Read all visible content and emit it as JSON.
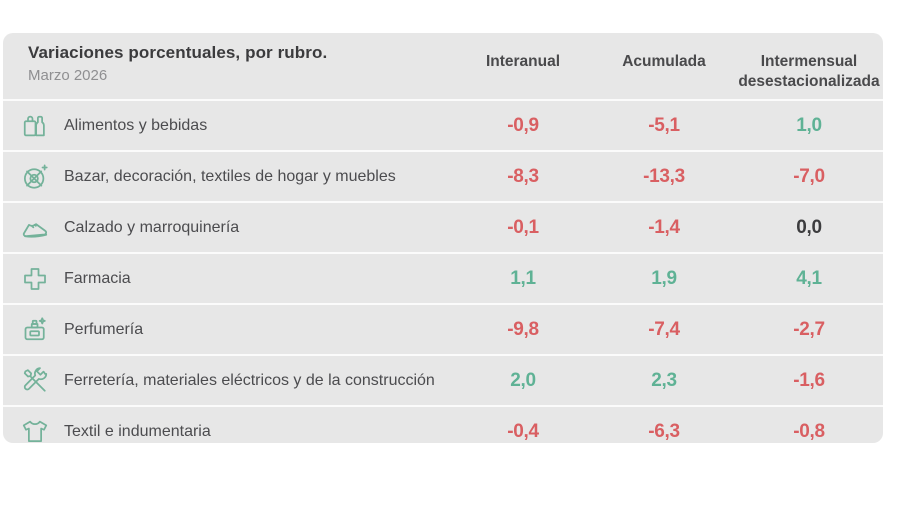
{
  "table": {
    "title": "Variaciones porcentuales, por rubro.",
    "subtitle": "Marzo 2026",
    "columns": [
      {
        "label": "Interanual",
        "sublabel": ""
      },
      {
        "label": "Acumulada",
        "sublabel": ""
      },
      {
        "label": "Intermensual",
        "sublabel": "desestacionalizada"
      }
    ],
    "rows": [
      {
        "icon": "groceries-icon",
        "label": "Alimentos y bebidas",
        "values": [
          {
            "text": "-0,9",
            "state": "negative"
          },
          {
            "text": "-5,1",
            "state": "negative"
          },
          {
            "text": "1,0",
            "state": "positive"
          }
        ]
      },
      {
        "icon": "tableware-icon",
        "label": "Bazar, decoración, textiles de hogar y muebles",
        "values": [
          {
            "text": "-8,3",
            "state": "negative"
          },
          {
            "text": "-13,3",
            "state": "negative"
          },
          {
            "text": "-7,0",
            "state": "negative"
          }
        ]
      },
      {
        "icon": "shoe-icon",
        "label": "Calzado y marroquinería",
        "values": [
          {
            "text": "-0,1",
            "state": "negative"
          },
          {
            "text": "-1,4",
            "state": "negative"
          },
          {
            "text": "0,0",
            "state": "neutral"
          }
        ]
      },
      {
        "icon": "pharmacy-cross-icon",
        "label": "Farmacia",
        "values": [
          {
            "text": "1,1",
            "state": "positive"
          },
          {
            "text": "1,9",
            "state": "positive"
          },
          {
            "text": "4,1",
            "state": "positive"
          }
        ]
      },
      {
        "icon": "perfume-icon",
        "label": "Perfumería",
        "values": [
          {
            "text": "-9,8",
            "state": "negative"
          },
          {
            "text": "-7,4",
            "state": "negative"
          },
          {
            "text": "-2,7",
            "state": "negative"
          }
        ]
      },
      {
        "icon": "tools-icon",
        "label": "Ferretería, materiales eléctricos y de la construcción",
        "values": [
          {
            "text": "2,0",
            "state": "positive"
          },
          {
            "text": "2,3",
            "state": "positive"
          },
          {
            "text": "-1,6",
            "state": "negative"
          }
        ]
      },
      {
        "icon": "tshirt-icon",
        "label": "Textil e indumentaria",
        "values": [
          {
            "text": "-0,4",
            "state": "negative"
          },
          {
            "text": "-6,3",
            "state": "negative"
          },
          {
            "text": "-0,8",
            "state": "negative"
          }
        ]
      }
    ]
  },
  "colors": {
    "negative": "#d95f62",
    "positive": "#5fb295",
    "neutral": "#3d3d3f",
    "icon": "#74b29a",
    "card_bg": "#e7e7e7"
  },
  "chart_data": {
    "type": "table",
    "title": "Variaciones porcentuales, por rubro.",
    "subtitle": "Marzo 2026",
    "categories": [
      "Alimentos y bebidas",
      "Bazar, decoración, textiles de hogar y muebles",
      "Calzado y marroquinería",
      "Farmacia",
      "Perfumería",
      "Ferretería, materiales eléctricos y de la construcción",
      "Textil e indumentaria"
    ],
    "series": [
      {
        "name": "Interanual",
        "values": [
          -0.9,
          -8.3,
          -0.1,
          1.1,
          -9.8,
          2.0,
          -0.4
        ]
      },
      {
        "name": "Acumulada",
        "values": [
          -5.1,
          -13.3,
          -1.4,
          1.9,
          -7.4,
          2.3,
          -6.3
        ]
      },
      {
        "name": "Intermensual desestacionalizada",
        "values": [
          1.0,
          -7.0,
          0.0,
          4.1,
          -2.7,
          -1.6,
          -0.8
        ]
      }
    ],
    "legend_position": "none",
    "value_color_rule": "negative=red, positive=teal, zero=dark-gray"
  }
}
